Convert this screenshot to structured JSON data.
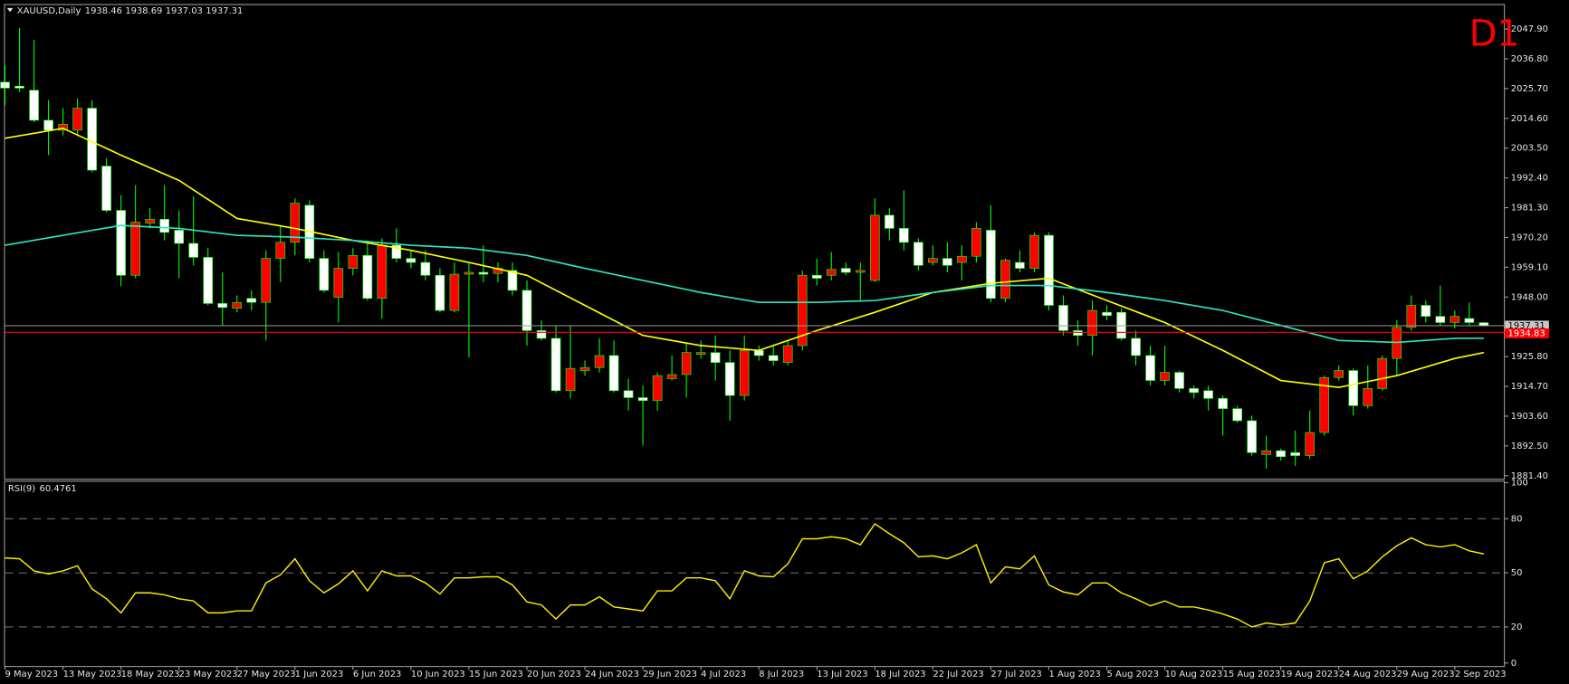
{
  "chart_data": [
    {
      "type": "candlestick",
      "title": "XAUUSD,Daily",
      "timeframe": "D1",
      "categories": [
        "9 May 2023",
        null,
        null,
        null,
        "13 May 2023",
        null,
        null,
        null,
        "18 May 2023",
        null,
        null,
        null,
        "23 May 2023",
        null,
        null,
        null,
        "27 May 2023",
        null,
        null,
        null,
        "1 Jun 2023",
        null,
        null,
        null,
        "6 Jun 2023",
        null,
        null,
        null,
        "10 Jun 2023",
        null,
        null,
        null,
        "15 Jun 2023",
        null,
        null,
        null,
        "20 Jun 2023",
        null,
        null,
        null,
        "24 Jun 2023",
        null,
        null,
        null,
        "29 Jun 2023",
        null,
        null,
        null,
        "4 Jul 2023",
        null,
        null,
        null,
        "8 Jul 2023",
        null,
        null,
        null,
        "13 Jul 2023",
        null,
        null,
        null,
        "18 Jul 2023",
        null,
        null,
        null,
        "22 Jul 2023",
        null,
        null,
        null,
        "27 Jul 2023",
        null,
        null,
        null,
        "1 Aug 2023",
        null,
        null,
        null,
        "5 Aug 2023",
        null,
        null,
        null,
        "10 Aug 2023",
        null,
        null,
        null,
        "15 Aug 2023",
        null,
        null,
        null,
        "19 Aug 2023",
        null,
        null,
        null,
        "24 Aug 2023",
        null,
        null,
        null,
        "29 Aug 2023",
        null,
        null,
        null,
        "2 Sep 2023",
        null,
        null
      ],
      "open": [
        2028.1,
        2026.6,
        2025.1,
        2013.9,
        2010.2,
        2010.2,
        2018.4,
        1996.8,
        1980.3,
        1956.1,
        1975.5,
        1977.0,
        1972.9,
        1968.0,
        1962.8,
        1945.6,
        1943.8,
        1947.5,
        1946.0,
        1962.4,
        1968.4,
        1982.2,
        1962.4,
        1947.9,
        1958.7,
        1963.5,
        1947.5,
        1967.3,
        1962.4,
        1960.9,
        1956.1,
        1943.0,
        1956.5,
        1957.2,
        1956.8,
        1957.9,
        1950.5,
        1935.5,
        1932.6,
        1913.1,
        1920.6,
        1921.7,
        1926.2,
        1913.1,
        1910.5,
        1909.4,
        1917.6,
        1919.1,
        1926.6,
        1927.3,
        1923.6,
        1911.3,
        1928.1,
        1926.2,
        1923.6,
        1929.9,
        1956.1,
        1956.1,
        1958.7,
        1957.2,
        1954.2,
        1978.5,
        1973.6,
        1968.4,
        1960.9,
        1962.4,
        1960.9,
        1963.2,
        1972.9,
        1947.5,
        1960.9,
        1958.7,
        1971.0,
        1944.9,
        1935.5,
        1933.7,
        1942.3,
        1942.3,
        1932.6,
        1926.2,
        1916.9,
        1919.9,
        1913.9,
        1913.1,
        1910.2,
        1906.4,
        1901.9,
        1889.3,
        1890.7,
        1890.0,
        1888.9,
        1897.5,
        1918.0,
        1920.6,
        1907.5,
        1913.9,
        1925.1,
        1936.7,
        1944.9,
        1940.8,
        1938.5,
        1940.0,
        1938.46
      ],
      "high": [
        2034.5,
        2048.3,
        2043.8,
        2021.4,
        2018.4,
        2022.1,
        2021.4,
        1999.8,
        1985.9,
        1989.7,
        1981.1,
        1989.7,
        1980.3,
        1985.6,
        1966.2,
        1957.2,
        1948.6,
        1950.5,
        1965.4,
        1974.4,
        1984.8,
        1984.1,
        1965.4,
        1964.7,
        1966.2,
        1969.1,
        1969.9,
        1973.6,
        1965.4,
        1965.4,
        1958.7,
        1960.9,
        1960.9,
        1967.3,
        1960.9,
        1960.9,
        1954.2,
        1939.3,
        1937.4,
        1937.4,
        1924.3,
        1932.6,
        1931.8,
        1917.6,
        1915.0,
        1919.9,
        1926.2,
        1931.1,
        1931.8,
        1933.7,
        1928.1,
        1933.7,
        1929.9,
        1929.9,
        1931.8,
        1957.9,
        1962.4,
        1964.7,
        1960.9,
        1960.9,
        1984.8,
        1981.1,
        1987.8,
        1969.9,
        1967.3,
        1968.4,
        1967.3,
        1975.9,
        1982.2,
        1962.4,
        1965.4,
        1972.1,
        1972.1,
        1948.6,
        1939.3,
        1946.7,
        1944.9,
        1943.8,
        1935.5,
        1929.9,
        1929.9,
        1920.6,
        1915.0,
        1915.0,
        1911.3,
        1907.5,
        1903.8,
        1896.3,
        1891.5,
        1898.2,
        1905.7,
        1918.7,
        1922.5,
        1921.4,
        1922.5,
        1926.2,
        1939.3,
        1948.6,
        1946.7,
        1952.3,
        1943.0,
        1946.0,
        1938.69
      ],
      "low": [
        2019.5,
        2024.4,
        2013.2,
        2000.9,
        2008.3,
        2008.0,
        1994.5,
        1979.6,
        1952.0,
        1955.0,
        1973.6,
        1969.1,
        1955.0,
        1959.8,
        1944.9,
        1937.4,
        1942.3,
        1943.0,
        1931.8,
        1953.5,
        1963.5,
        1960.9,
        1949.7,
        1938.5,
        1956.1,
        1946.7,
        1940.0,
        1960.9,
        1958.7,
        1954.2,
        1942.3,
        1942.3,
        1925.5,
        1953.5,
        1953.5,
        1948.6,
        1929.9,
        1931.8,
        1912.4,
        1910.2,
        1918.7,
        1919.9,
        1912.4,
        1905.7,
        1892.6,
        1905.7,
        1916.9,
        1910.5,
        1925.1,
        1916.9,
        1901.9,
        1909.4,
        1924.3,
        1922.5,
        1922.5,
        1928.1,
        1952.3,
        1954.2,
        1956.1,
        1946.7,
        1953.5,
        1969.1,
        1965.4,
        1957.9,
        1959.8,
        1957.2,
        1954.2,
        1960.9,
        1946.0,
        1946.0,
        1957.2,
        1957.2,
        1943.0,
        1933.7,
        1929.9,
        1926.2,
        1939.3,
        1931.8,
        1922.5,
        1915.0,
        1915.0,
        1912.4,
        1910.2,
        1905.7,
        1896.3,
        1901.2,
        1888.9,
        1884.0,
        1887.0,
        1885.1,
        1887.8,
        1896.3,
        1916.9,
        1903.8,
        1906.4,
        1913.1,
        1918.7,
        1935.5,
        1938.5,
        1937.4,
        1936.3,
        1937.4,
        1937.03
      ],
      "close": [
        2025.9,
        2025.9,
        2013.9,
        2010.2,
        2012.4,
        2018.4,
        1995.3,
        1980.3,
        1956.1,
        1975.9,
        1977.0,
        1972.1,
        1968.0,
        1962.8,
        1945.6,
        1944.1,
        1946.0,
        1946.0,
        1962.4,
        1968.4,
        1983.0,
        1962.4,
        1950.5,
        1958.7,
        1963.5,
        1947.5,
        1967.3,
        1962.4,
        1960.9,
        1956.1,
        1943.0,
        1956.5,
        1957.2,
        1956.5,
        1958.7,
        1950.5,
        1935.5,
        1932.6,
        1913.1,
        1921.4,
        1921.7,
        1926.2,
        1913.1,
        1910.5,
        1909.4,
        1918.7,
        1919.1,
        1927.3,
        1927.3,
        1923.6,
        1911.3,
        1928.1,
        1926.2,
        1924.3,
        1929.9,
        1956.1,
        1955.0,
        1958.3,
        1957.2,
        1957.9,
        1978.5,
        1973.6,
        1968.4,
        1959.8,
        1962.4,
        1959.8,
        1963.2,
        1973.6,
        1947.5,
        1961.7,
        1958.7,
        1971.0,
        1944.9,
        1935.5,
        1933.7,
        1943.0,
        1941.1,
        1932.6,
        1926.2,
        1916.9,
        1919.9,
        1913.9,
        1912.4,
        1910.2,
        1906.4,
        1901.9,
        1890.0,
        1890.7,
        1888.5,
        1888.9,
        1897.5,
        1918.0,
        1920.6,
        1907.5,
        1913.9,
        1925.1,
        1936.7,
        1944.9,
        1940.8,
        1938.5,
        1940.8,
        1938.5,
        1937.31
      ],
      "up_color": "#ff0000",
      "down_color": "#ffffff",
      "wick_color": "#00ff00",
      "overlays": [
        {
          "color": "#ffff00",
          "x": [
            0,
            4,
            8,
            12,
            16,
            20,
            24,
            28,
            32,
            36,
            40,
            44,
            48,
            52,
            56,
            60,
            64,
            68,
            72,
            76,
            80,
            84,
            88,
            92,
            96,
            100,
            102
          ],
          "values": [
            2007.2,
            2010.9,
            2000.9,
            1991.5,
            1977.3,
            1973.6,
            1969.1,
            1965.4,
            1960.9,
            1956.1,
            1944.9,
            1933.7,
            1929.9,
            1928.1,
            1935.5,
            1942.3,
            1949.7,
            1953.1,
            1955.0,
            1946.7,
            1938.5,
            1928.1,
            1916.9,
            1914.3,
            1918.7,
            1925.1,
            1927.3
          ]
        },
        {
          "color": "#2ee6c0",
          "x": [
            0,
            4,
            8,
            12,
            16,
            20,
            24,
            28,
            32,
            36,
            40,
            44,
            48,
            52,
            56,
            60,
            64,
            68,
            72,
            76,
            80,
            84,
            88,
            92,
            96,
            100,
            102
          ],
          "values": [
            1967.3,
            1971.0,
            1974.7,
            1973.6,
            1971.0,
            1970.3,
            1969.1,
            1967.3,
            1966.2,
            1963.5,
            1958.7,
            1954.2,
            1949.7,
            1946.0,
            1946.0,
            1946.7,
            1949.7,
            1952.3,
            1952.3,
            1949.7,
            1946.7,
            1943.0,
            1937.4,
            1931.8,
            1931.1,
            1932.6,
            1932.6
          ]
        }
      ],
      "hline": 1934.83,
      "hline_color": "#ff0000",
      "ylim": [
        1880.28,
        2056.86
      ],
      "yticks": [
        {
          "value": 1881.4,
          "label": "1881.40"
        },
        {
          "value": 1892.5,
          "label": "1892.50"
        },
        {
          "value": 1903.6,
          "label": "1903.60"
        },
        {
          "value": 1914.7,
          "label": "1914.70"
        },
        {
          "value": 1925.8,
          "label": "1925.80"
        },
        {
          "value": 1948,
          "label": "1948.00"
        },
        {
          "value": 1959.1,
          "label": "1959.10"
        },
        {
          "value": 1970.2,
          "label": "1970.20"
        },
        {
          "value": 1981.3,
          "label": "1981.30"
        },
        {
          "value": 1992.4,
          "label": "1992.40"
        },
        {
          "value": 2003.5,
          "label": "2003.50"
        },
        {
          "value": 2014.6,
          "label": "2014.60"
        },
        {
          "value": 2025.7,
          "label": "2025.70"
        },
        {
          "value": 2036.8,
          "label": "2036.80"
        },
        {
          "value": 2047.9,
          "label": "2047.90"
        }
      ],
      "grid": false
    },
    {
      "type": "line",
      "title": "RSI(9)",
      "color": "#ffee00",
      "values": [
        58.3,
        57.8,
        51.1,
        49.4,
        51.1,
        53.9,
        41.1,
        35.6,
        27.8,
        38.9,
        38.9,
        37.8,
        35.6,
        34.4,
        27.8,
        27.8,
        28.9,
        28.9,
        44.4,
        48.9,
        57.8,
        45.6,
        38.9,
        43.9,
        51.1,
        40.0,
        51.1,
        48.3,
        48.3,
        44.4,
        38.3,
        47.2,
        47.2,
        47.8,
        47.8,
        43.3,
        33.9,
        32.2,
        24.4,
        32.2,
        32.2,
        36.7,
        31.1,
        30.0,
        28.9,
        40.0,
        40.0,
        47.2,
        47.2,
        45.6,
        35.6,
        51.1,
        48.3,
        47.8,
        55.0,
        68.9,
        68.9,
        70.0,
        68.9,
        65.6,
        77.2,
        71.7,
        66.7,
        58.9,
        59.4,
        57.8,
        61.1,
        65.6,
        44.4,
        53.3,
        52.2,
        59.4,
        43.3,
        39.4,
        37.8,
        44.4,
        44.4,
        38.9,
        35.6,
        31.7,
        34.4,
        31.1,
        31.1,
        29.4,
        27.2,
        24.4,
        20.0,
        22.2,
        21.1,
        22.2,
        34.4,
        55.6,
        57.8,
        46.7,
        51.1,
        58.9,
        65.0,
        69.4,
        65.6,
        64.4,
        65.6,
        62.2,
        60.4761
      ],
      "ylim": [
        0,
        100
      ],
      "yticks": [
        0,
        20,
        50,
        80,
        100
      ],
      "grid": true
    }
  ]
}
